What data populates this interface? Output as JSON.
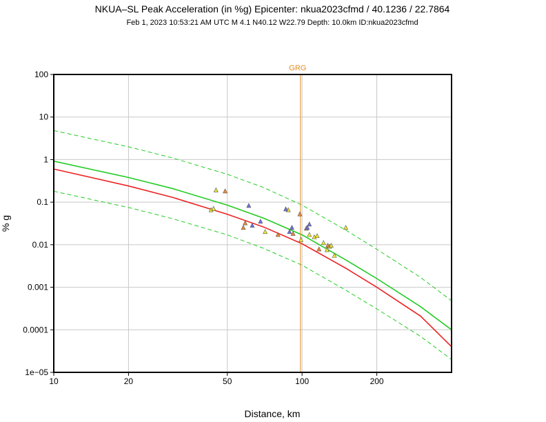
{
  "chart_data": {
    "type": "scatter",
    "title": "NKUA–SL Peak Acceleration (in %g) Epicenter: nkua2023cfmd / 40.1236 / 22.7864",
    "subtitle": "Feb  1, 2023 10:53:21 AM UTC   M 4.1   N40.12 W22.79   Depth: 10.0km   ID:nkua2023cfmd",
    "xlabel": "Distance, km",
    "ylabel": "% g",
    "x_scale": "log",
    "y_scale": "log",
    "xlim": [
      10,
      400
    ],
    "ylim": [
      1e-05,
      100
    ],
    "grid": true,
    "x_ticks": [
      {
        "value": 10,
        "label": "10"
      },
      {
        "value": 20,
        "label": "20"
      },
      {
        "value": 50,
        "label": "50"
      },
      {
        "value": 100,
        "label": "100"
      },
      {
        "value": 200,
        "label": "200"
      }
    ],
    "y_ticks": [
      {
        "value": 100,
        "label": "100"
      },
      {
        "value": 10,
        "label": "10"
      },
      {
        "value": 1,
        "label": "1"
      },
      {
        "value": 0.1,
        "label": "0.1"
      },
      {
        "value": 0.01,
        "label": "0.01"
      },
      {
        "value": 0.001,
        "label": "0.001"
      },
      {
        "value": 0.0001,
        "label": "0.0001"
      },
      {
        "value": 1e-05,
        "label": "1e−05"
      }
    ],
    "annotations": [
      {
        "label": "GRG",
        "x": 98.5,
        "color": "#e08a1e"
      }
    ],
    "curves": [
      {
        "name": "upper-bound",
        "color": "#22cc22",
        "style": "dashed",
        "x": [
          10,
          20,
          30,
          50,
          70,
          100,
          150,
          200,
          300,
          400
        ],
        "y": [
          4.8,
          2.0,
          1.1,
          0.45,
          0.22,
          0.085,
          0.022,
          0.0078,
          0.0017,
          0.00048
        ]
      },
      {
        "name": "median",
        "color": "#22cc22",
        "style": "solid",
        "x": [
          10,
          20,
          30,
          50,
          70,
          100,
          150,
          200,
          300,
          400
        ],
        "y": [
          0.92,
          0.38,
          0.21,
          0.085,
          0.042,
          0.017,
          0.0044,
          0.0016,
          0.00035,
          0.0001
        ]
      },
      {
        "name": "lower-bound",
        "color": "#22cc22",
        "style": "dashed",
        "x": [
          10,
          20,
          30,
          50,
          70,
          100,
          150,
          200,
          300,
          400
        ],
        "y": [
          0.18,
          0.075,
          0.041,
          0.017,
          0.0082,
          0.0033,
          0.00085,
          0.00031,
          7e-05,
          2e-05
        ]
      },
      {
        "name": "reference",
        "color": "#ee2222",
        "style": "solid",
        "x": [
          10,
          20,
          30,
          50,
          70,
          100,
          150,
          200,
          300,
          400
        ],
        "y": [
          0.6,
          0.24,
          0.13,
          0.052,
          0.026,
          0.0105,
          0.0028,
          0.001,
          0.00021,
          4e-05
        ]
      }
    ],
    "series": [
      {
        "name": "stations-yellow",
        "color": "#f0e830",
        "x": [
          43,
          44,
          45,
          71,
          88,
          99,
          107,
          112,
          115,
          122,
          126,
          129,
          131,
          135,
          150
        ],
        "y": [
          0.065,
          0.07,
          0.19,
          0.02,
          0.065,
          0.013,
          0.017,
          0.015,
          0.016,
          0.011,
          0.0075,
          0.009,
          0.0095,
          0.0055,
          0.025
        ]
      },
      {
        "name": "stations-orange",
        "color": "#f08a30",
        "x": [
          49,
          58,
          59,
          80,
          92,
          98,
          104,
          117,
          127
        ],
        "y": [
          0.18,
          0.025,
          0.032,
          0.017,
          0.018,
          0.052,
          0.024,
          0.0078,
          0.0095
        ]
      },
      {
        "name": "stations-blue",
        "color": "#6e72dc",
        "x": [
          61,
          63,
          68,
          86,
          89,
          91,
          105,
          107
        ],
        "y": [
          0.082,
          0.028,
          0.035,
          0.068,
          0.02,
          0.025,
          0.025,
          0.03
        ]
      }
    ]
  }
}
